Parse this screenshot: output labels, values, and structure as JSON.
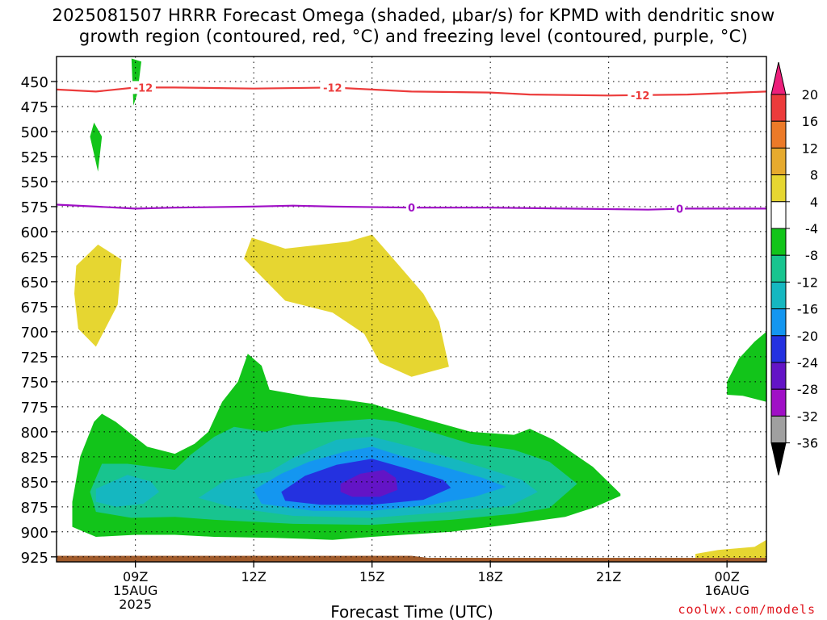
{
  "header": {
    "title_line1": "2025081507 HRRR Forecast Omega (shaded, μbar/s) for KPMD with dendritic snow",
    "title_line2": "growth region (contoured, red, °C) and freezing level (contoured, purple, °C)"
  },
  "credit": "coolwx.com/models",
  "chart_data": {
    "type": "heatmap",
    "xlabel": "Forecast Time (UTC)",
    "x_ticks": [
      {
        "hour": 9,
        "label": "09Z",
        "sub1": "15AUG",
        "sub2": "2025"
      },
      {
        "hour": 12,
        "label": "12Z",
        "sub1": "",
        "sub2": ""
      },
      {
        "hour": 15,
        "label": "15Z",
        "sub1": "",
        "sub2": ""
      },
      {
        "hour": 18,
        "label": "18Z",
        "sub1": "",
        "sub2": ""
      },
      {
        "hour": 21,
        "label": "21Z",
        "sub1": "",
        "sub2": ""
      },
      {
        "hour": 24,
        "label": "00Z",
        "sub1": "16AUG",
        "sub2": ""
      }
    ],
    "xlim_hours": [
      7,
      25
    ],
    "y_ticks": [
      450,
      475,
      500,
      525,
      550,
      575,
      600,
      625,
      650,
      675,
      700,
      725,
      750,
      775,
      800,
      825,
      850,
      875,
      900,
      925
    ],
    "ylim_hpa": [
      425,
      930
    ],
    "grid": true,
    "colorbar": {
      "labels": [
        "20",
        "16",
        "12",
        "8",
        "4",
        "-4",
        "-8",
        "-12",
        "-16",
        "-20",
        "-24",
        "-28",
        "-32",
        "-36"
      ],
      "colors": [
        "#ed1f7b",
        "#ec3b3b",
        "#ec7a28",
        "#e6aa2e",
        "#e6d631",
        "#ffffff",
        "#12c41a",
        "#18c48f",
        "#15b7c0",
        "#1496f0",
        "#2431e0",
        "#6314c6",
        "#a010c6",
        "#a0a0a0",
        "#000000"
      ]
    },
    "contours": [
      {
        "name": "dgz",
        "label": "-12",
        "color": "#ec3b3b",
        "points": [
          [
            7,
            458
          ],
          [
            8,
            460
          ],
          [
            9,
            456
          ],
          [
            10,
            456
          ],
          [
            12,
            457
          ],
          [
            14,
            456
          ],
          [
            16,
            460
          ],
          [
            18,
            461
          ],
          [
            19,
            463
          ],
          [
            21,
            464
          ],
          [
            23,
            463
          ],
          [
            25,
            460
          ]
        ],
        "label_hours": [
          9.2,
          14.0,
          21.8
        ]
      },
      {
        "name": "freezing-level",
        "label": "0",
        "color": "#a010c6",
        "points": [
          [
            7,
            573
          ],
          [
            8,
            575
          ],
          [
            9,
            577
          ],
          [
            10,
            576
          ],
          [
            12,
            575
          ],
          [
            13,
            574
          ],
          [
            14,
            575
          ],
          [
            16,
            576
          ],
          [
            18,
            576
          ],
          [
            20,
            577
          ],
          [
            22,
            578
          ],
          [
            23,
            577
          ],
          [
            25,
            577
          ]
        ],
        "label_hours": [
          16.0,
          22.8
        ]
      }
    ],
    "regions": [
      {
        "value": "-4 to -8",
        "color": "#12c41a",
        "points": [
          [
            8.9,
            427
          ],
          [
            9.15,
            430
          ],
          [
            9.05,
            462
          ],
          [
            8.95,
            474
          ]
        ]
      },
      {
        "value": "-4 to -8",
        "color": "#12c41a",
        "points": [
          [
            7.95,
            491
          ],
          [
            8.15,
            505
          ],
          [
            8.05,
            540
          ],
          [
            7.85,
            505
          ]
        ]
      },
      {
        "value": "4 to 8",
        "color": "#e6d631",
        "points": [
          [
            7.5,
            634
          ],
          [
            8.05,
            613
          ],
          [
            8.65,
            628
          ],
          [
            8.55,
            673
          ],
          [
            8.0,
            715
          ],
          [
            7.55,
            697
          ],
          [
            7.45,
            662
          ]
        ]
      },
      {
        "value": "4 to 8",
        "color": "#e6d631",
        "points": [
          [
            11.75,
            627
          ],
          [
            11.95,
            606
          ],
          [
            12.8,
            617
          ],
          [
            14.4,
            610
          ],
          [
            15.0,
            603
          ],
          [
            15.6,
            630
          ],
          [
            16.3,
            662
          ],
          [
            16.7,
            690
          ],
          [
            16.95,
            735
          ],
          [
            16.0,
            745
          ],
          [
            15.2,
            731
          ],
          [
            14.8,
            702
          ],
          [
            14.0,
            681
          ],
          [
            13.4,
            675
          ],
          [
            12.8,
            669
          ],
          [
            12.2,
            645
          ]
        ]
      },
      {
        "value": "4 to 8",
        "color": "#e6d631",
        "points": [
          [
            23.2,
            922
          ],
          [
            23.8,
            918
          ],
          [
            24.7,
            915
          ],
          [
            25,
            908
          ],
          [
            25,
            926
          ],
          [
            23.2,
            926
          ]
        ]
      },
      {
        "value": "-4 to -8",
        "color": "#12c41a",
        "points": [
          [
            24,
            750
          ],
          [
            24.3,
            727
          ],
          [
            24.7,
            710
          ],
          [
            25,
            700
          ],
          [
            25,
            770
          ],
          [
            24.4,
            764
          ],
          [
            24,
            763
          ]
        ]
      },
      {
        "value": "-4 to -8",
        "color": "#12c41a",
        "points": [
          [
            7.4,
            870
          ],
          [
            7.6,
            825
          ],
          [
            7.95,
            790
          ],
          [
            8.15,
            782
          ],
          [
            8.5,
            790
          ],
          [
            9.3,
            815
          ],
          [
            10.0,
            822
          ],
          [
            10.5,
            812
          ],
          [
            10.85,
            800
          ],
          [
            11.2,
            770
          ],
          [
            11.6,
            750
          ],
          [
            11.85,
            722
          ],
          [
            12.2,
            734
          ],
          [
            12.4,
            758
          ],
          [
            13.4,
            765
          ],
          [
            14.3,
            768
          ],
          [
            15.0,
            772
          ],
          [
            15.5,
            778
          ],
          [
            16.5,
            789
          ],
          [
            17.5,
            800
          ],
          [
            18.6,
            803
          ],
          [
            19.0,
            797
          ],
          [
            19.6,
            808
          ],
          [
            20.6,
            835
          ],
          [
            21.3,
            862
          ],
          [
            21.3,
            864
          ],
          [
            20.6,
            876
          ],
          [
            19.9,
            885
          ],
          [
            19.0,
            890
          ],
          [
            18.0,
            895
          ],
          [
            17.0,
            900
          ],
          [
            15.0,
            905
          ],
          [
            14.0,
            908
          ],
          [
            12.5,
            906
          ],
          [
            11.0,
            905
          ],
          [
            10.0,
            903
          ],
          [
            9.0,
            903
          ],
          [
            8.0,
            905
          ],
          [
            7.4,
            895
          ]
        ]
      },
      {
        "value": "-8 to -12",
        "color": "#18c48f",
        "points": [
          [
            7.85,
            860
          ],
          [
            8.15,
            832
          ],
          [
            8.8,
            832
          ],
          [
            10.0,
            838
          ],
          [
            10.4,
            823
          ],
          [
            11.0,
            805
          ],
          [
            11.5,
            795
          ],
          [
            12.3,
            800
          ],
          [
            13.0,
            793
          ],
          [
            14.0,
            790
          ],
          [
            15.0,
            787
          ],
          [
            15.6,
            790
          ],
          [
            16.5,
            800
          ],
          [
            17.5,
            812
          ],
          [
            18.6,
            818
          ],
          [
            19.5,
            830
          ],
          [
            20.2,
            852
          ],
          [
            19.5,
            876
          ],
          [
            18.6,
            882
          ],
          [
            17.0,
            888
          ],
          [
            15.0,
            893
          ],
          [
            13.0,
            892
          ],
          [
            11.0,
            888
          ],
          [
            10.0,
            885
          ],
          [
            8.9,
            886
          ],
          [
            8.0,
            880
          ]
        ]
      },
      {
        "value": "-12 to -16",
        "color": "#15b7c0",
        "points": [
          [
            8.0,
            857
          ],
          [
            8.8,
            843
          ],
          [
            9.4,
            850
          ],
          [
            9.6,
            860
          ],
          [
            9.2,
            872
          ],
          [
            8.5,
            875
          ],
          [
            8.0,
            870
          ]
        ]
      },
      {
        "value": "-12 to -16",
        "color": "#15b7c0",
        "points": [
          [
            10.6,
            866
          ],
          [
            11.3,
            848
          ],
          [
            12.4,
            840
          ],
          [
            13.0,
            826
          ],
          [
            14.1,
            808
          ],
          [
            15.0,
            805
          ],
          [
            16.0,
            815
          ],
          [
            17.0,
            826
          ],
          [
            18.0,
            838
          ],
          [
            18.8,
            848
          ],
          [
            19.2,
            860
          ],
          [
            18.5,
            874
          ],
          [
            17.0,
            880
          ],
          [
            15.0,
            886
          ],
          [
            13.0,
            884
          ],
          [
            11.5,
            876
          ]
        ]
      },
      {
        "value": "-16 to -20",
        "color": "#1496f0",
        "points": [
          [
            12.0,
            858
          ],
          [
            12.7,
            842
          ],
          [
            13.4,
            830
          ],
          [
            14.3,
            820
          ],
          [
            15.0,
            815
          ],
          [
            15.8,
            825
          ],
          [
            16.8,
            835
          ],
          [
            17.8,
            846
          ],
          [
            18.4,
            855
          ],
          [
            17.6,
            865
          ],
          [
            16.5,
            873
          ],
          [
            15.0,
            879
          ],
          [
            13.5,
            879
          ],
          [
            12.2,
            872
          ]
        ]
      },
      {
        "value": "-20 to -24",
        "color": "#2431e0",
        "points": [
          [
            12.7,
            860
          ],
          [
            13.3,
            844
          ],
          [
            14.1,
            833
          ],
          [
            15.0,
            827
          ],
          [
            15.9,
            837
          ],
          [
            16.8,
            848
          ],
          [
            17.0,
            856
          ],
          [
            16.3,
            868
          ],
          [
            15.0,
            873
          ],
          [
            13.7,
            873
          ],
          [
            12.8,
            869
          ]
        ]
      },
      {
        "value": "-24 to -28",
        "color": "#6314c6",
        "points": [
          [
            14.2,
            852
          ],
          [
            14.7,
            842
          ],
          [
            15.3,
            838
          ],
          [
            15.6,
            846
          ],
          [
            15.65,
            858
          ],
          [
            15.2,
            865
          ],
          [
            14.5,
            865
          ],
          [
            14.2,
            860
          ]
        ]
      }
    ],
    "ground": {
      "color": "#a05a2a",
      "top_hpa": 924,
      "dip_start_hour": 16.0,
      "dip_hpa": 926
    }
  }
}
